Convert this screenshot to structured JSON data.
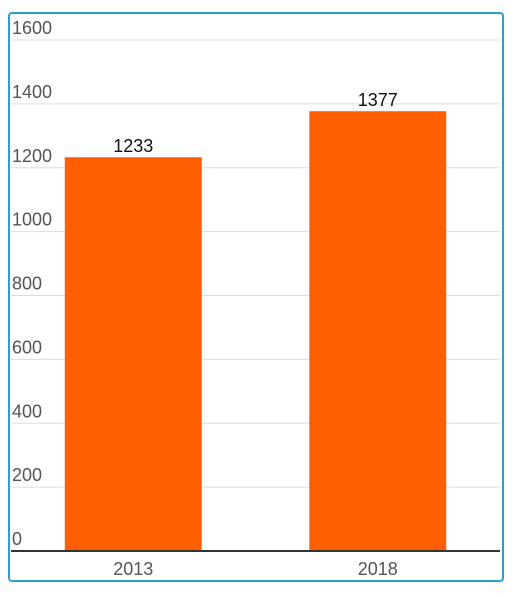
{
  "chart_data": {
    "type": "bar",
    "categories": [
      "2013",
      "2018"
    ],
    "values": [
      1233,
      1377
    ],
    "data_labels": [
      "1233",
      "1377"
    ],
    "ylim": [
      0,
      1600
    ],
    "yticks": [
      0,
      200,
      400,
      600,
      800,
      1000,
      1200,
      1400,
      1600
    ],
    "ytick_labels": [
      "0",
      "200",
      "400",
      "600",
      "800",
      "1000",
      "1200",
      "1400",
      "1600"
    ],
    "grid": true,
    "legend": "none",
    "bar_color": "#ff5f00",
    "frame_color": "#2a9fd6",
    "title": "",
    "xlabel": "",
    "ylabel": ""
  }
}
